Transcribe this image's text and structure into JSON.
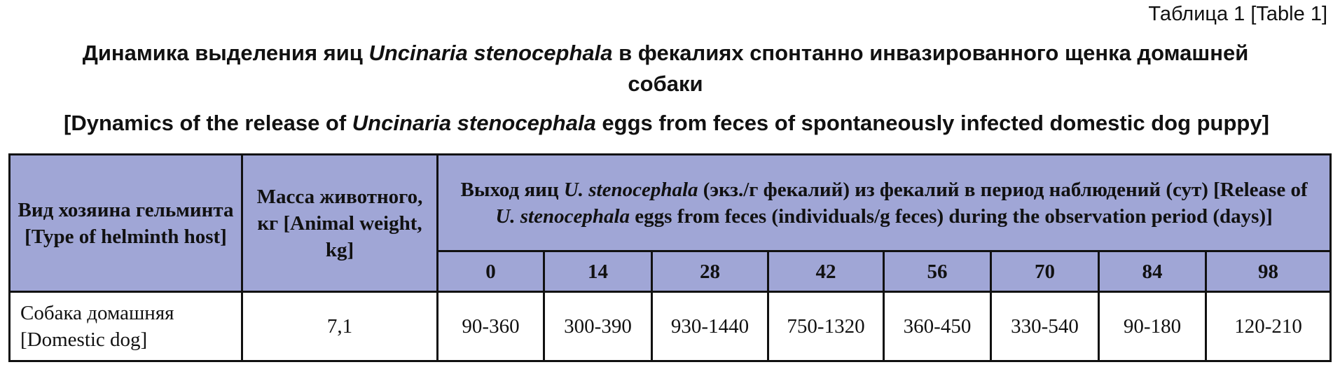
{
  "label": "Таблица 1 [Table 1]",
  "title": [
    {
      "text": "Динамика выделения яиц ",
      "italic": false
    },
    {
      "text": "Uncinaria stenocephala",
      "italic": true
    },
    {
      "text": " в фекалиях спонтанно инвазированного щенка домашней собаки",
      "italic": false
    }
  ],
  "title_en": [
    {
      "text": "[Dynamics of the release of ",
      "italic": false
    },
    {
      "text": "Uncinaria stenocephala",
      "italic": true
    },
    {
      "text": " eggs from feces of spontaneously infected domestic dog puppy]",
      "italic": false
    }
  ],
  "table": {
    "header": {
      "host": "Вид хозяина гельминта [Type of helminth host]",
      "weight": "Масса живот­ного, кг [Animal weight, kg]",
      "release": [
        {
          "text": "Выход яиц ",
          "italic": false
        },
        {
          "text": "U. stenocephala",
          "italic": true
        },
        {
          "text": " (экз./г фекалий) из фекалий в период наблюдений (сут) [Release of ",
          "italic": false
        },
        {
          "text": "U. stenocephala",
          "italic": true
        },
        {
          "text": " eggs from feces (individuals/g feces) during the observation period (days)]",
          "italic": false
        }
      ],
      "days": [
        0,
        14,
        28,
        42,
        56,
        70,
        84,
        98
      ]
    },
    "rows": [
      [
        "Собака домашняя [Domestic dog]",
        "7,1",
        "90-360",
        "300-390",
        "930-1440",
        "750-1320",
        "360-450",
        "330-540",
        "90-180",
        "120-210"
      ]
    ]
  }
}
